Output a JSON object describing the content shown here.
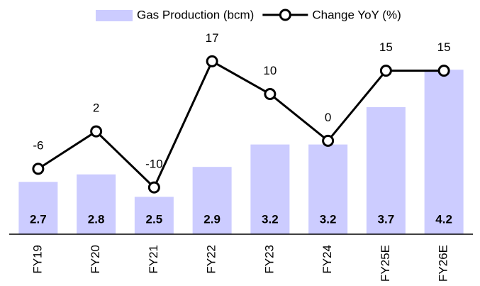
{
  "chart_data": {
    "type": "bar-line",
    "categories": [
      "FY19",
      "FY20",
      "FY21",
      "FY22",
      "FY23",
      "FY24",
      "FY25E",
      "FY26E"
    ],
    "series": [
      {
        "name": "Gas Production (bcm)",
        "type": "bar",
        "color": "#ccccff",
        "values": [
          2.7,
          2.8,
          2.5,
          2.9,
          3.2,
          3.2,
          3.7,
          4.2
        ]
      },
      {
        "name": "Change YoY (%)",
        "type": "line",
        "axis": "y2",
        "color": "#000000",
        "values": [
          -6,
          2,
          -10,
          17,
          10,
          0,
          15,
          15
        ]
      }
    ],
    "ylim": [
      2,
      5
    ],
    "y2lim": [
      -20,
      28
    ],
    "legend": "top"
  }
}
